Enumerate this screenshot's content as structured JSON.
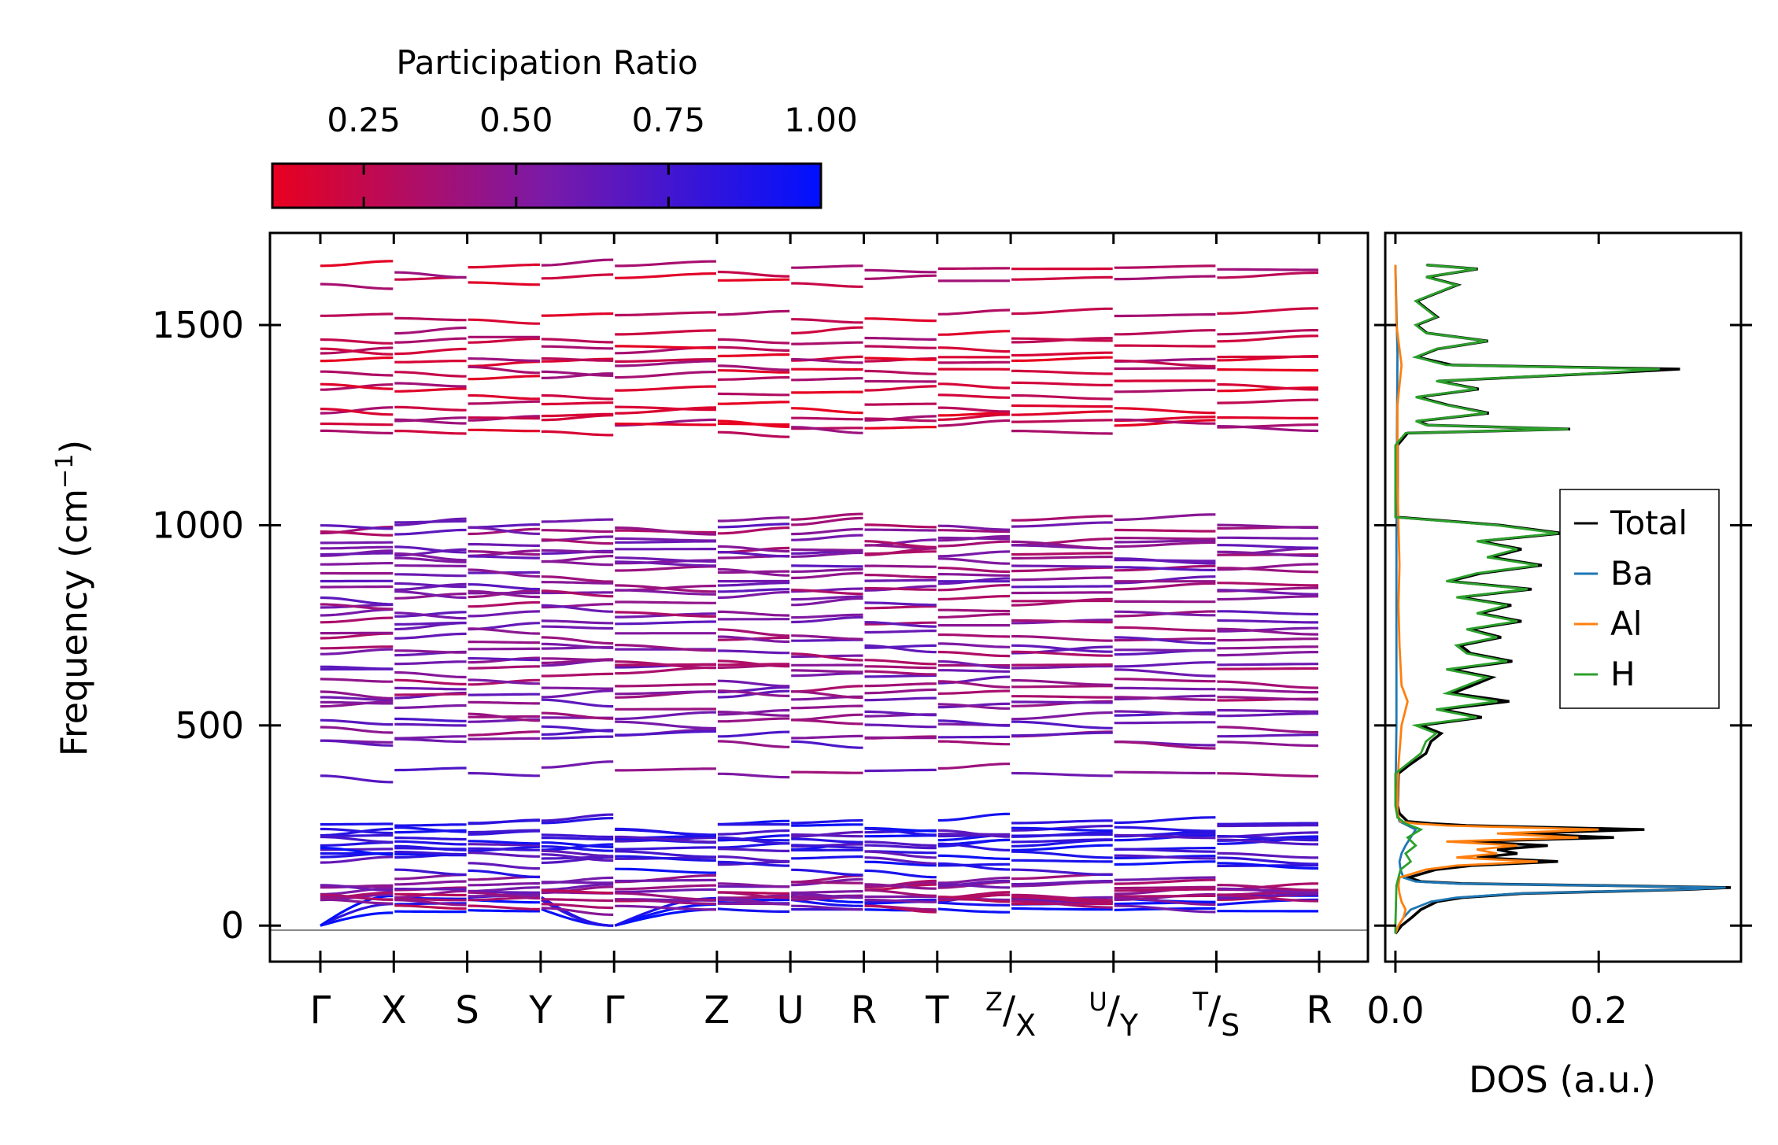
{
  "chart_data": [
    {
      "type": "line",
      "panel": "band-structure",
      "ylabel": "Frequency (cm",
      "ylabel_sup": "−1",
      "ylabel_close": ")",
      "ylim": [
        -90,
        1730
      ],
      "yticks": [
        0,
        500,
        1000,
        1500
      ],
      "ytick_labels": [
        "0",
        "500",
        "1000",
        "1500"
      ],
      "kpoints": [
        {
          "label": "Γ",
          "pos": 0.0
        },
        {
          "label": "X",
          "pos": 1.0
        },
        {
          "label": "S",
          "pos": 2.0
        },
        {
          "label": "Y",
          "pos": 3.0
        },
        {
          "label": "Γ",
          "pos": 4.0
        },
        {
          "label": "Z",
          "pos": 5.4
        },
        {
          "label": "U",
          "pos": 6.4
        },
        {
          "label": "R",
          "pos": 7.4
        },
        {
          "label": "T",
          "pos": 8.4
        },
        {
          "sup": "Z",
          "label": "X",
          "pos": 9.4
        },
        {
          "sup": "U",
          "label": "Y",
          "pos": 10.8
        },
        {
          "sup": "T",
          "label": "S",
          "pos": 12.2
        },
        {
          "label": "R",
          "pos": 13.6
        }
      ],
      "segments": [
        [
          0,
          1
        ],
        [
          1,
          2
        ],
        [
          2,
          3
        ],
        [
          3,
          4
        ],
        [
          4,
          5.4
        ],
        [
          5.4,
          6.4
        ],
        [
          6.4,
          7.4
        ],
        [
          7.4,
          8.4
        ],
        [
          8.4,
          9.4
        ],
        [
          9.4,
          10.8
        ],
        [
          10.8,
          12.2
        ],
        [
          12.2,
          13.6
        ]
      ],
      "band_groups": [
        {
          "name": "acoustic",
          "levels": [
            0,
            0,
            0
          ],
          "ends": [
            40,
            60,
            70
          ],
          "pr": 0.95
        },
        {
          "name": "low-optic",
          "levels": [
            55,
            60,
            68,
            72,
            80,
            85,
            92,
            98,
            110
          ],
          "pr": 0.45
        },
        {
          "name": "ba-al",
          "levels": [
            148,
            165,
            180,
            188,
            195,
            205,
            215,
            222,
            230,
            248,
            252
          ],
          "pr": 0.8
        },
        {
          "name": "h-mid-low",
          "levels": [
            385,
            465,
            470,
            505,
            520,
            540
          ],
          "pr": 0.55
        },
        {
          "name": "h-mid",
          "levels": [
            560,
            575,
            595,
            620,
            640,
            650,
            670,
            690,
            710,
            730,
            750,
            765,
            790,
            810,
            830,
            845,
            860,
            880,
            900,
            915,
            925,
            940,
            955,
            970,
            990,
            1005
          ],
          "pr": 0.5
        },
        {
          "name": "h-high",
          "levels": [
            1240,
            1255,
            1270,
            1300,
            1330,
            1360,
            1390,
            1405,
            1420,
            1450,
            1470,
            1520,
            1610,
            1640
          ],
          "pr": 0.25
        }
      ],
      "colorbar": {
        "label": "Participation Ratio",
        "ticks": [
          "0.25",
          "0.50",
          "0.75",
          "1.00"
        ],
        "tick_values": [
          0.25,
          0.5,
          0.75,
          1.0
        ],
        "range": [
          0.1,
          1.0
        ],
        "color_low": "#e8001f",
        "color_mid": "#7a1aa8",
        "color_high": "#0010ff"
      }
    },
    {
      "type": "line",
      "panel": "dos",
      "xlabel": "DOS (a.u.)",
      "xlim": [
        -0.01,
        0.34
      ],
      "xticks": [
        0.0,
        0.2
      ],
      "xtick_labels": [
        "0.0",
        "0.2"
      ],
      "legend": {
        "placement": "center-right",
        "entries": [
          {
            "name": "Total",
            "color": "#000000"
          },
          {
            "name": "Ba",
            "color": "#1f77b4"
          },
          {
            "name": "Al",
            "color": "#ff7f0e"
          },
          {
            "name": "H",
            "color": "#2ca02c"
          }
        ]
      },
      "series": [
        {
          "name": "Ba",
          "color": "#1f77b4",
          "freq": [
            -20,
            0,
            20,
            40,
            60,
            70,
            80,
            90,
            95,
            100,
            105,
            110,
            120,
            140,
            160,
            180,
            200,
            220,
            240,
            260,
            300,
            500,
            1000,
            1430,
            1650
          ],
          "dos": [
            0,
            0.003,
            0.008,
            0.015,
            0.035,
            0.06,
            0.12,
            0.28,
            0.325,
            0.2,
            0.06,
            0.02,
            0.008,
            0.005,
            0.004,
            0.006,
            0.01,
            0.015,
            0.02,
            0.004,
            0,
            0.001,
            0.001,
            0.002,
            0
          ]
        },
        {
          "name": "Al",
          "color": "#ff7f0e",
          "freq": [
            -20,
            0,
            20,
            40,
            60,
            80,
            100,
            120,
            140,
            150,
            160,
            170,
            180,
            190,
            200,
            210,
            220,
            230,
            240,
            250,
            255,
            260,
            280,
            320,
            400,
            500,
            560,
            600,
            700,
            800,
            900,
            1000,
            1100,
            1200,
            1300,
            1400,
            1500,
            1650
          ],
          "dos": [
            0,
            0.003,
            0.008,
            0.01,
            0.006,
            0.004,
            0.003,
            0.004,
            0.03,
            0.06,
            0.14,
            0.06,
            0.1,
            0.08,
            0.12,
            0.05,
            0.18,
            0.1,
            0.2,
            0.05,
            0.02,
            0.005,
            0.002,
            0.002,
            0.003,
            0.006,
            0.012,
            0.006,
            0.004,
            0.003,
            0.004,
            0.003,
            0.002,
            0.002,
            0.002,
            0.006,
            0.001,
            0
          ]
        },
        {
          "name": "H",
          "color": "#2ca02c",
          "freq": [
            -20,
            0,
            100,
            140,
            160,
            180,
            200,
            220,
            240,
            255,
            270,
            300,
            380,
            400,
            430,
            460,
            480,
            500,
            520,
            540,
            560,
            580,
            600,
            620,
            640,
            660,
            680,
            700,
            720,
            740,
            760,
            780,
            800,
            820,
            840,
            860,
            880,
            900,
            920,
            940,
            960,
            980,
            1000,
            1010,
            1020,
            1100,
            1200,
            1230,
            1240,
            1250,
            1260,
            1280,
            1300,
            1320,
            1340,
            1360,
            1380,
            1390,
            1400,
            1420,
            1440,
            1460,
            1480,
            1500,
            1520,
            1540,
            1560,
            1580,
            1600,
            1620,
            1640,
            1650
          ],
          "dos": [
            0,
            0,
            0.001,
            0.005,
            0.015,
            0.01,
            0.02,
            0.012,
            0.025,
            0.01,
            0.002,
            0,
            0,
            0.01,
            0.025,
            0.03,
            0.04,
            0.02,
            0.08,
            0.04,
            0.1,
            0.05,
            0.07,
            0.09,
            0.05,
            0.11,
            0.07,
            0.06,
            0.1,
            0.07,
            0.12,
            0.08,
            0.11,
            0.06,
            0.13,
            0.05,
            0.08,
            0.14,
            0.09,
            0.12,
            0.08,
            0.16,
            0.1,
            0.05,
            0,
            0,
            0,
            0.01,
            0.17,
            0.03,
            0.02,
            0.09,
            0.05,
            0.02,
            0.08,
            0.04,
            0.2,
            0.26,
            0.05,
            0.02,
            0.04,
            0.09,
            0.03,
            0.02,
            0.04,
            0.03,
            0.02,
            0.04,
            0.06,
            0.03,
            0.08,
            0.03
          ]
        },
        {
          "name": "Total",
          "color": "#000000",
          "freq": [
            -20,
            0,
            20,
            40,
            60,
            70,
            80,
            90,
            95,
            100,
            105,
            110,
            120,
            140,
            150,
            160,
            170,
            180,
            190,
            200,
            210,
            220,
            230,
            240,
            250,
            255,
            260,
            280,
            300,
            380,
            400,
            430,
            460,
            480,
            500,
            520,
            540,
            560,
            580,
            600,
            620,
            640,
            660,
            680,
            700,
            720,
            740,
            760,
            780,
            800,
            820,
            840,
            860,
            880,
            900,
            920,
            940,
            960,
            980,
            1000,
            1010,
            1020,
            1100,
            1200,
            1230,
            1240,
            1250,
            1260,
            1280,
            1300,
            1320,
            1340,
            1360,
            1380,
            1390,
            1400,
            1420,
            1440,
            1460,
            1480,
            1500,
            1520,
            1540,
            1560,
            1580,
            1600,
            1620,
            1640,
            1650
          ],
          "dos": [
            0,
            0.006,
            0.016,
            0.025,
            0.041,
            0.066,
            0.124,
            0.285,
            0.33,
            0.205,
            0.065,
            0.025,
            0.013,
            0.04,
            0.075,
            0.16,
            0.08,
            0.12,
            0.1,
            0.15,
            0.07,
            0.215,
            0.12,
            0.245,
            0.07,
            0.035,
            0.012,
            0.004,
            0.002,
            0.003,
            0.013,
            0.03,
            0.035,
            0.045,
            0.025,
            0.085,
            0.045,
            0.112,
            0.056,
            0.076,
            0.095,
            0.055,
            0.115,
            0.074,
            0.064,
            0.104,
            0.073,
            0.124,
            0.083,
            0.114,
            0.063,
            0.134,
            0.053,
            0.084,
            0.144,
            0.094,
            0.124,
            0.083,
            0.164,
            0.103,
            0.053,
            0.002,
            0.002,
            0.002,
            0.012,
            0.172,
            0.032,
            0.022,
            0.092,
            0.052,
            0.022,
            0.082,
            0.042,
            0.206,
            0.28,
            0.056,
            0.021,
            0.041,
            0.091,
            0.031,
            0.021,
            0.041,
            0.031,
            0.021,
            0.041,
            0.061,
            0.031,
            0.081,
            0.031
          ]
        }
      ]
    }
  ]
}
